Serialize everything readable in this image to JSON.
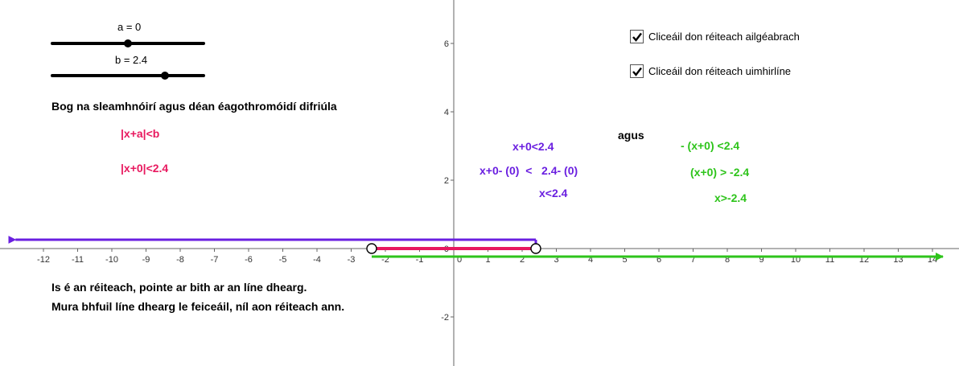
{
  "sliders": [
    {
      "label": "a = 0",
      "value": 0,
      "min": -5,
      "max": 5
    },
    {
      "label": "b = 2.4",
      "value": 2.4,
      "min": -5,
      "max": 5
    }
  ],
  "instruction": "Bog na sleamhnóirí agus déan éagothromóidí difriúla",
  "general_form": "|x+a|<b",
  "specific_form": "|x+0|<2.4",
  "left_steps": [
    "x+0<2.4",
    "x+0- (0)  <   2.4- (0)",
    "x<2.4"
  ],
  "connector": "agus",
  "right_steps": [
    "- (x+0) <2.4",
    "(x+0) > -2.4",
    "x>-2.4"
  ],
  "checkboxes": [
    {
      "label": "Cliceáil don réiteach ailgéabrach",
      "checked": true
    },
    {
      "label": "Cliceáil don réiteach uimhirlíne",
      "checked": true
    }
  ],
  "solution_lines": [
    "Is é an réiteach, pointe ar bith ar an líne dhearg.",
    "Mura bhfuil líne dhearg le feiceáil, níl aon réiteach ann."
  ],
  "colors": {
    "pink": "#e8195f",
    "purple": "#6a1fe0",
    "green": "#2ec41b",
    "black": "#000000"
  },
  "chart_data": {
    "type": "line",
    "x_range": [
      -13.1,
      14.4
    ],
    "y_range": [
      -3.4,
      6.9
    ],
    "x_ticks": [
      -12,
      -11,
      -10,
      -9,
      -8,
      -7,
      -6,
      -5,
      -4,
      -3,
      -2,
      -1,
      0,
      1,
      2,
      3,
      4,
      5,
      6,
      7,
      8,
      9,
      10,
      11,
      12,
      13,
      14
    ],
    "y_ticks": [
      -2,
      0,
      2,
      4,
      6
    ],
    "series": [
      {
        "name": "x<2.4",
        "color": "#6a1fe0",
        "from": 2.4,
        "to": "-inf",
        "direction": "left"
      },
      {
        "name": "x>-2.4",
        "color": "#2ec41b",
        "from": -2.4,
        "to": "inf",
        "direction": "right"
      },
      {
        "name": "|x+0|<2.4",
        "color": "#e8195f",
        "from": -2.4,
        "to": 2.4
      }
    ],
    "open_endpoints": [
      -2.4,
      2.4
    ]
  }
}
